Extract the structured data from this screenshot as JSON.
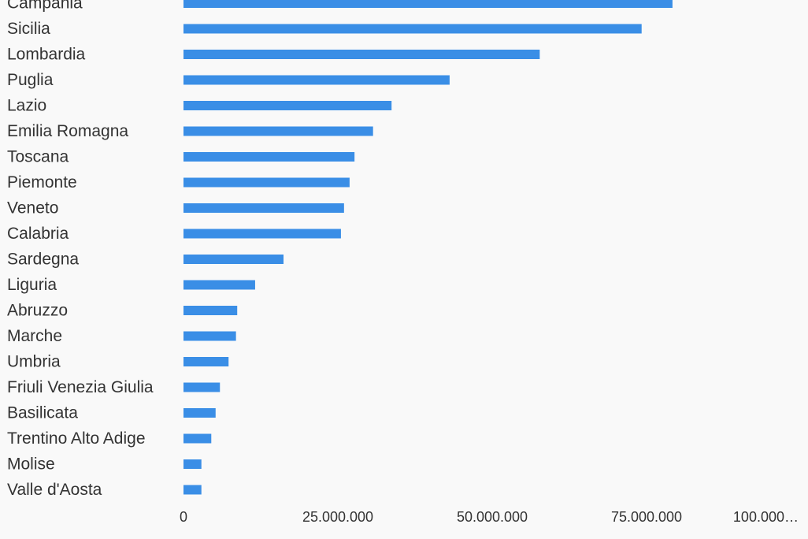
{
  "chart_data": {
    "type": "bar",
    "orientation": "horizontal",
    "categories": [
      "Campania",
      "Sicilia",
      "Lombardia",
      "Puglia",
      "Lazio",
      "Emilia Romagna",
      "Toscana",
      "Piemonte",
      "Veneto",
      "Calabria",
      "Sardegna",
      "Liguria",
      "Abruzzo",
      "Marche",
      "Umbria",
      "Friuli Venezia Giulia",
      "Basilicata",
      "Trentino Alto Adige",
      "Molise",
      "Valle d'Aosta"
    ],
    "values": [
      79200000,
      74200000,
      57700000,
      43100000,
      33700000,
      30700000,
      27700000,
      26900000,
      26000000,
      25500000,
      16200000,
      11600000,
      8700000,
      8500000,
      7300000,
      5900000,
      5200000,
      4500000,
      2900000,
      2900000
    ],
    "color": "#3a8ee6",
    "xlim": [
      0,
      100000000
    ],
    "xticks": [
      0,
      {
        "value": 25000000,
        "label": "25.000.000"
      },
      {
        "value": 50000000,
        "label": "50.000.000"
      },
      {
        "value": 75000000,
        "label": "75.000.000"
      },
      {
        "value": 100000000,
        "label": "100.000…"
      }
    ],
    "grid": false
  }
}
